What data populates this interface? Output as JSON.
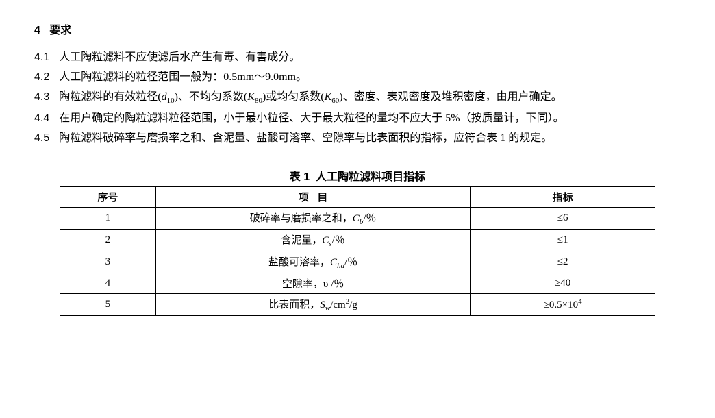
{
  "section": {
    "num": "4",
    "title": "要求"
  },
  "clauses": {
    "c41_num": "4.1",
    "c41_text": "人工陶粒滤料不应使滤后水产生有毒、有害成分。",
    "c42_num": "4.2",
    "c42_text": "人工陶粒滤料的粒径范围一般为：0.5mm～9.0mm。",
    "c43_num": "4.3",
    "c43_pre": "陶粒滤料的有效粒径(",
    "c43_d": "d",
    "c43_d_sub": "10",
    "c43_mid1": ")、不均匀系数(",
    "c43_k80": "K",
    "c43_k80_sub": "80",
    "c43_mid2": ")或均匀系数(",
    "c43_k60": "K",
    "c43_k60_sub": "60",
    "c43_post": ")、密度、表观密度及堆积密度，由用户确定。",
    "c44_num": "4.4",
    "c44_text": "在用户确定的陶粒滤料粒径范围，小于最小粒径、大于最大粒径的量均不应大于 5%（按质量计，下同）。",
    "c45_num": "4.5",
    "c45_text": "陶粒滤料破碎率与磨损率之和、含泥量、盐酸可溶率、空隙率与比表面积的指标，应符合表 1 的规定。"
  },
  "table": {
    "caption_pre": "表 1",
    "caption_title": "人工陶粒滤料项目指标",
    "header_seq": "序号",
    "header_item_1": "项",
    "header_item_2": "目",
    "header_spec": "指标",
    "rows": {
      "r1_seq": "1",
      "r1_item_pre": "破碎率与磨损率之和，",
      "r1_sym": "C",
      "r1_sub": "b",
      "r1_unit": "/％",
      "r1_spec": "≤6",
      "r2_seq": "2",
      "r2_item_pre": "含泥量，",
      "r2_sym": "C",
      "r2_sub": "s",
      "r2_unit": "/％",
      "r2_spec": "≤1",
      "r3_seq": "3",
      "r3_item_pre": "盐酸可溶率，",
      "r3_sym": "C",
      "r3_sub": "ha",
      "r3_unit": "/％",
      "r3_spec": "≤2",
      "r4_seq": "4",
      "r4_item_pre": "空隙率，",
      "r4_sym": "υ",
      "r4_unit": " /％",
      "r4_spec": "≥40",
      "r5_seq": "5",
      "r5_item_pre": "比表面积，",
      "r5_sym": "S",
      "r5_sub": "w",
      "r5_unit_pre": "/cm",
      "r5_unit_sup": "2",
      "r5_unit_post": "/g",
      "r5_spec_pre": "≥0.5×10",
      "r5_spec_sup": "4"
    }
  }
}
